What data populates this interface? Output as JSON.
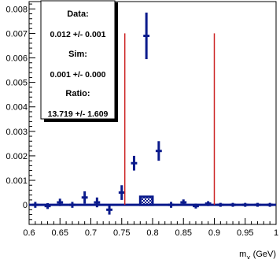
{
  "stats_box": {
    "data_label": "Data:",
    "data_value": "0.012 +/- 0.001",
    "sim_label": "Sim:",
    "sim_value": "0.001 +/- 0.000",
    "ratio_label": "Ratio:",
    "ratio_value": "13.719 +/- 1.609"
  },
  "chart_data": {
    "type": "scatter",
    "xlabel": "m_X (GeV)",
    "ylabel": "",
    "xlim": [
      0.6,
      1.0
    ],
    "ylim": [
      -0.0008,
      0.0083
    ],
    "x_ticks": [
      0.6,
      0.65,
      0.7,
      0.75,
      0.8,
      0.85,
      0.9,
      0.95,
      1.0
    ],
    "x_tick_labels": [
      "0.6",
      "0.65",
      "0.7",
      "0.75",
      "0.8",
      "0.85",
      "0.9",
      "0.95",
      "1"
    ],
    "y_ticks": [
      0,
      0.001,
      0.002,
      0.003,
      0.004,
      0.005,
      0.006,
      0.007,
      0.008
    ],
    "y_tick_labels": [
      "0",
      "0.001",
      "0.002",
      "0.003",
      "0.004",
      "0.005",
      "0.006",
      "0.007",
      "0.008"
    ],
    "data_series": {
      "color": "#0a1a8c",
      "bin_half_width": 0.005,
      "points": [
        {
          "x": 0.61,
          "y": 0.0,
          "err": 0.00012
        },
        {
          "x": 0.63,
          "y": -5e-05,
          "err": 0.00012
        },
        {
          "x": 0.65,
          "y": 0.0001,
          "err": 0.00015
        },
        {
          "x": 0.67,
          "y": 0.0,
          "err": 0.00012
        },
        {
          "x": 0.69,
          "y": 0.0003,
          "err": 0.00025
        },
        {
          "x": 0.71,
          "y": 0.0001,
          "err": 0.0002
        },
        {
          "x": 0.73,
          "y": -0.0002,
          "err": 0.0002
        },
        {
          "x": 0.75,
          "y": 0.0005,
          "err": 0.0003
        },
        {
          "x": 0.77,
          "y": 0.0017,
          "err": 0.0003
        },
        {
          "x": 0.79,
          "y": 0.0069,
          "err": 0.00095
        },
        {
          "x": 0.81,
          "y": 0.0022,
          "err": 0.0004
        },
        {
          "x": 0.83,
          "y": 0.0,
          "err": 0.00012
        },
        {
          "x": 0.85,
          "y": 0.0001,
          "err": 0.00012
        },
        {
          "x": 0.87,
          "y": -5e-05,
          "err": 0.0001
        },
        {
          "x": 0.89,
          "y": 5e-05,
          "err": 0.0001
        },
        {
          "x": 0.91,
          "y": 0.0,
          "err": 8e-05
        },
        {
          "x": 0.93,
          "y": 0.0,
          "err": 8e-05
        },
        {
          "x": 0.95,
          "y": 0.0,
          "err": 8e-05
        },
        {
          "x": 0.97,
          "y": 0.0,
          "err": 8e-05
        },
        {
          "x": 0.99,
          "y": 0.0,
          "err": 8e-05
        }
      ]
    },
    "sim_series": {
      "color": "#0a1a8c",
      "bins": [
        {
          "x0": 0.78,
          "x1": 0.8,
          "y0": 0.0,
          "y1": 0.00033
        }
      ],
      "baseline_y": 0.0
    },
    "selection_lines": {
      "color": "#cc2222",
      "x": [
        0.755,
        0.9
      ],
      "y_top": 0.007
    }
  }
}
